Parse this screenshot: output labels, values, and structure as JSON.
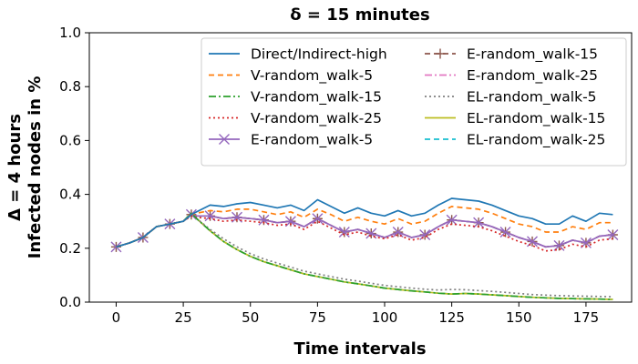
{
  "chart_data": {
    "type": "line",
    "title": "δ = 15 minutes",
    "xlabel": "Time intervals",
    "ylabel_line1": "Δ = 4 hours",
    "ylabel_line2": "Infected nodes in %",
    "xlim": [
      -10,
      192
    ],
    "ylim": [
      0,
      1.0
    ],
    "xticks": [
      0,
      25,
      50,
      75,
      100,
      125,
      150,
      175
    ],
    "yticks": [
      0.0,
      0.2,
      0.4,
      0.6,
      0.8,
      1.0
    ],
    "ytick_labels": [
      "0.0",
      "0.2",
      "0.4",
      "0.6",
      "0.8",
      "1.0"
    ],
    "legend_position": "upper-right",
    "x": [
      0,
      5,
      10,
      15,
      20,
      25,
      28,
      30,
      35,
      40,
      45,
      50,
      55,
      60,
      65,
      70,
      75,
      80,
      85,
      90,
      95,
      100,
      105,
      110,
      115,
      120,
      125,
      130,
      135,
      140,
      145,
      150,
      155,
      160,
      165,
      170,
      175,
      180,
      185
    ],
    "series": [
      {
        "name": "Direct/Indirect-high",
        "color": "#1f77b4",
        "dash": "solid",
        "marker": "none",
        "values": [
          0.205,
          0.22,
          0.24,
          0.28,
          0.29,
          0.3,
          0.325,
          0.335,
          0.36,
          0.355,
          0.365,
          0.37,
          0.36,
          0.35,
          0.36,
          0.34,
          0.38,
          0.355,
          0.33,
          0.35,
          0.33,
          0.32,
          0.34,
          0.32,
          0.33,
          0.36,
          0.385,
          0.38,
          0.375,
          0.36,
          0.34,
          0.32,
          0.31,
          0.29,
          0.29,
          0.32,
          0.3,
          0.33,
          0.325
        ]
      },
      {
        "name": "V-random_walk-5",
        "color": "#ff7f0e",
        "dash": "6,4",
        "marker": "none",
        "values": [
          0.205,
          0.22,
          0.24,
          0.28,
          0.29,
          0.3,
          0.325,
          0.33,
          0.34,
          0.335,
          0.345,
          0.345,
          0.335,
          0.325,
          0.335,
          0.315,
          0.345,
          0.325,
          0.3,
          0.315,
          0.3,
          0.29,
          0.31,
          0.29,
          0.3,
          0.33,
          0.355,
          0.35,
          0.345,
          0.33,
          0.31,
          0.29,
          0.28,
          0.26,
          0.26,
          0.28,
          0.27,
          0.295,
          0.295
        ]
      },
      {
        "name": "V-random_walk-15",
        "color": "#2ca02c",
        "dash": "8,3,2,3",
        "marker": "none",
        "values": [
          0.205,
          0.22,
          0.24,
          0.28,
          0.29,
          0.3,
          0.33,
          0.31,
          0.265,
          0.225,
          0.195,
          0.17,
          0.15,
          0.135,
          0.12,
          0.105,
          0.095,
          0.085,
          0.075,
          0.068,
          0.06,
          0.052,
          0.047,
          0.042,
          0.038,
          0.033,
          0.03,
          0.032,
          0.03,
          0.027,
          0.024,
          0.021,
          0.018,
          0.016,
          0.014,
          0.013,
          0.012,
          0.011,
          0.01
        ]
      },
      {
        "name": "V-random_walk-25",
        "color": "#d62728",
        "dash": "2,3",
        "marker": "none",
        "values": [
          0.205,
          0.22,
          0.24,
          0.28,
          0.29,
          0.3,
          0.32,
          0.315,
          0.31,
          0.3,
          0.305,
          0.3,
          0.295,
          0.285,
          0.29,
          0.27,
          0.3,
          0.275,
          0.25,
          0.26,
          0.245,
          0.235,
          0.25,
          0.23,
          0.24,
          0.27,
          0.29,
          0.285,
          0.28,
          0.265,
          0.245,
          0.225,
          0.21,
          0.19,
          0.195,
          0.215,
          0.205,
          0.23,
          0.235
        ]
      },
      {
        "name": "E-random_walk-5",
        "color": "#9467bd",
        "dash": "solid",
        "marker": "x",
        "values": [
          0.205,
          0.22,
          0.24,
          0.28,
          0.29,
          0.3,
          0.325,
          0.32,
          0.32,
          0.31,
          0.315,
          0.31,
          0.305,
          0.295,
          0.3,
          0.28,
          0.31,
          0.285,
          0.26,
          0.27,
          0.255,
          0.24,
          0.26,
          0.24,
          0.25,
          0.28,
          0.305,
          0.3,
          0.295,
          0.28,
          0.26,
          0.24,
          0.225,
          0.205,
          0.21,
          0.23,
          0.22,
          0.245,
          0.25
        ]
      },
      {
        "name": "E-random_walk-15",
        "color": "#8c564b",
        "dash": "6,4",
        "marker": "plus",
        "values": [
          0.205,
          0.22,
          0.24,
          0.28,
          0.29,
          0.3,
          0.325,
          0.32,
          0.32,
          0.31,
          0.315,
          0.31,
          0.305,
          0.295,
          0.3,
          0.28,
          0.31,
          0.285,
          0.26,
          0.27,
          0.255,
          0.24,
          0.26,
          0.24,
          0.25,
          0.28,
          0.305,
          0.3,
          0.295,
          0.28,
          0.26,
          0.24,
          0.225,
          0.205,
          0.21,
          0.23,
          0.22,
          0.245,
          0.25
        ]
      },
      {
        "name": "E-random_walk-25",
        "color": "#e377c2",
        "dash": "8,3,2,3",
        "marker": "none",
        "values": [
          0.205,
          0.22,
          0.24,
          0.28,
          0.29,
          0.3,
          0.325,
          0.32,
          0.32,
          0.31,
          0.315,
          0.31,
          0.305,
          0.295,
          0.3,
          0.28,
          0.31,
          0.285,
          0.26,
          0.27,
          0.255,
          0.24,
          0.26,
          0.24,
          0.25,
          0.28,
          0.305,
          0.3,
          0.295,
          0.28,
          0.26,
          0.24,
          0.225,
          0.205,
          0.21,
          0.23,
          0.22,
          0.245,
          0.25
        ]
      },
      {
        "name": "EL-random_walk-5",
        "color": "#7f7f7f",
        "dash": "2,3",
        "marker": "none",
        "values": [
          0.205,
          0.22,
          0.24,
          0.28,
          0.29,
          0.3,
          0.33,
          0.31,
          0.27,
          0.235,
          0.205,
          0.18,
          0.16,
          0.145,
          0.13,
          0.115,
          0.105,
          0.095,
          0.085,
          0.078,
          0.07,
          0.062,
          0.057,
          0.052,
          0.048,
          0.045,
          0.047,
          0.046,
          0.043,
          0.04,
          0.036,
          0.032,
          0.028,
          0.026,
          0.024,
          0.023,
          0.022,
          0.021,
          0.02
        ]
      },
      {
        "name": "EL-random_walk-15",
        "color": "#bcbd22",
        "dash": "solid",
        "marker": "none",
        "values": [
          0.205,
          0.22,
          0.24,
          0.28,
          0.29,
          0.3,
          0.33,
          0.31,
          0.265,
          0.225,
          0.195,
          0.17,
          0.15,
          0.135,
          0.12,
          0.105,
          0.095,
          0.085,
          0.075,
          0.068,
          0.06,
          0.052,
          0.047,
          0.042,
          0.038,
          0.033,
          0.03,
          0.032,
          0.03,
          0.027,
          0.024,
          0.021,
          0.018,
          0.016,
          0.014,
          0.013,
          0.012,
          0.011,
          0.01
        ]
      },
      {
        "name": "EL-random_walk-25",
        "color": "#17becf",
        "dash": "6,4",
        "marker": "none",
        "values": [
          0.205,
          0.22,
          0.24,
          0.28,
          0.29,
          0.3,
          0.33,
          0.31,
          0.265,
          0.225,
          0.195,
          0.17,
          0.15,
          0.135,
          0.12,
          0.105,
          0.095,
          0.085,
          0.075,
          0.068,
          0.06,
          0.052,
          0.047,
          0.042,
          0.038,
          0.033,
          0.03,
          0.032,
          0.03,
          0.027,
          0.024,
          0.021,
          0.018,
          0.016,
          0.014,
          0.013,
          0.012,
          0.011,
          0.01
        ]
      }
    ]
  }
}
